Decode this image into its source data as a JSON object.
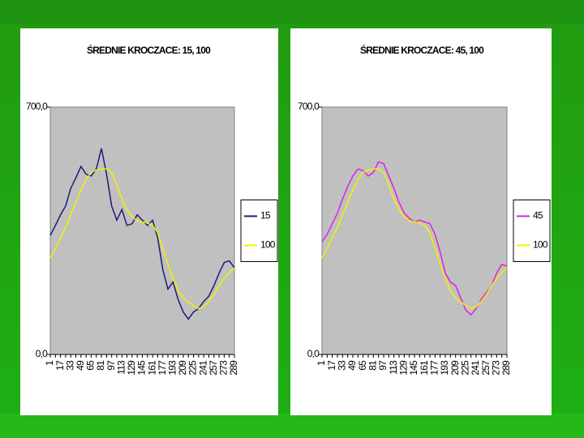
{
  "chart_data": [
    {
      "type": "line",
      "title": "ŚREDNIE KROCZACE: 15,  100",
      "categories": [
        "1",
        null,
        "17",
        null,
        "33",
        null,
        "49",
        null,
        "65",
        null,
        "81",
        null,
        "97",
        null,
        "113",
        null,
        "129",
        null,
        "145",
        null,
        "161",
        null,
        "177",
        null,
        "193",
        null,
        "209",
        null,
        "225",
        null,
        "241",
        null,
        "257",
        null,
        "273",
        null,
        "289"
      ],
      "series": [
        {
          "name": "15",
          "color": "#1c1c78",
          "values": [
            337,
            365,
            395,
            420,
            470,
            500,
            532,
            510,
            505,
            525,
            583,
            510,
            420,
            380,
            410,
            365,
            370,
            395,
            380,
            365,
            380,
            330,
            240,
            185,
            205,
            155,
            120,
            100,
            120,
            130,
            150,
            165,
            195,
            230,
            260,
            265,
            245
          ]
        },
        {
          "name": "100",
          "color": "#f2f200",
          "values": [
            273,
            300,
            330,
            360,
            395,
            430,
            465,
            495,
            515,
            522,
            525,
            525,
            515,
            480,
            440,
            410,
            390,
            378,
            375,
            372,
            365,
            345,
            300,
            255,
            215,
            180,
            160,
            148,
            138,
            130,
            135,
            150,
            170,
            195,
            215,
            232,
            245
          ]
        }
      ],
      "ylim": [
        0,
        700
      ],
      "yticks": [
        {
          "value": 0,
          "label": "0,0"
        },
        {
          "value": 700,
          "label": "700,0"
        }
      ],
      "legend": "right"
    },
    {
      "type": "line",
      "title": "ŚREDNIE KROCZACE:  45, 100",
      "categories": [
        "1",
        null,
        "17",
        null,
        "33",
        null,
        "49",
        null,
        "65",
        null,
        "81",
        null,
        "97",
        null,
        "113",
        null,
        "129",
        null,
        "145",
        null,
        "161",
        null,
        "177",
        null,
        "193",
        null,
        "209",
        null,
        "225",
        null,
        "241",
        null,
        "257",
        null,
        "273",
        null,
        "289"
      ],
      "series": [
        {
          "name": "45",
          "color": "#e020e0",
          "values": [
            319,
            340,
            370,
            400,
            440,
            475,
            505,
            525,
            520,
            505,
            515,
            545,
            540,
            505,
            470,
            430,
            400,
            385,
            375,
            380,
            375,
            370,
            340,
            290,
            230,
            205,
            195,
            160,
            125,
            112,
            130,
            155,
            175,
            195,
            230,
            255,
            250
          ]
        },
        {
          "name": "100",
          "color": "#f2f200",
          "values": [
            273,
            300,
            330,
            360,
            395,
            430,
            465,
            495,
            515,
            522,
            525,
            525,
            515,
            480,
            440,
            410,
            390,
            378,
            375,
            372,
            365,
            345,
            300,
            255,
            215,
            180,
            160,
            148,
            138,
            130,
            135,
            150,
            170,
            195,
            215,
            232,
            245
          ]
        }
      ],
      "ylim": [
        0,
        700
      ],
      "yticks": [
        {
          "value": 0,
          "label": "0,0"
        },
        {
          "value": 700,
          "label": "700,0"
        }
      ],
      "legend": "right"
    }
  ]
}
